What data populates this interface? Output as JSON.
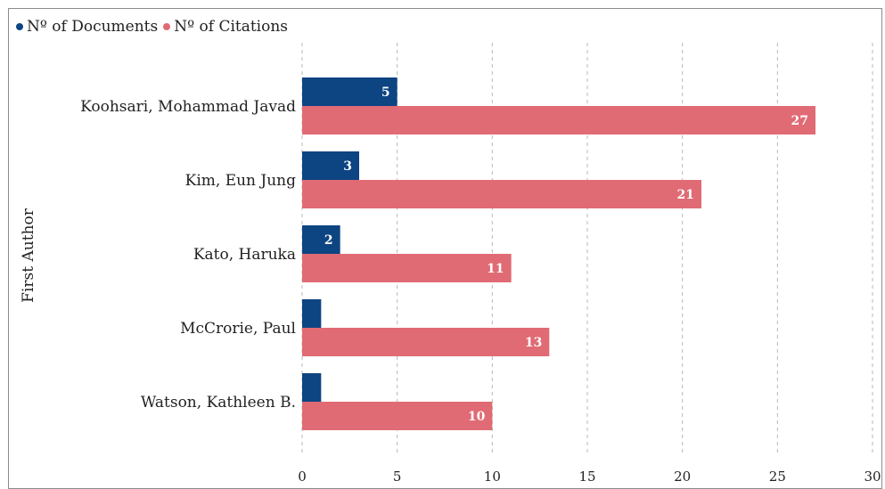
{
  "chart_data": {
    "type": "bar",
    "orientation": "horizontal",
    "categories": [
      "Koohsari, Mohammad Javad",
      "Kim, Eun Jung",
      "Kato, Haruka",
      "McCrorie, Paul",
      "Watson, Kathleen B."
    ],
    "series": [
      {
        "name": "Nº of Documents",
        "values": [
          5,
          3,
          2,
          1,
          1
        ],
        "color": "#0d4482",
        "labels": [
          "5",
          "3",
          "2",
          "",
          ""
        ]
      },
      {
        "name": "Nº of Citations",
        "values": [
          27,
          21,
          11,
          13,
          10
        ],
        "color": "#e06b74",
        "labels": [
          "27",
          "21",
          "11",
          "13",
          "10"
        ]
      }
    ],
    "title": "",
    "xlabel": "",
    "ylabel": "First Author",
    "xlim": [
      0,
      30
    ],
    "xticks": [
      "0",
      "5",
      "10",
      "15",
      "20",
      "25",
      "30"
    ],
    "grid": "vertical dashed",
    "legend_position": "top-left"
  }
}
